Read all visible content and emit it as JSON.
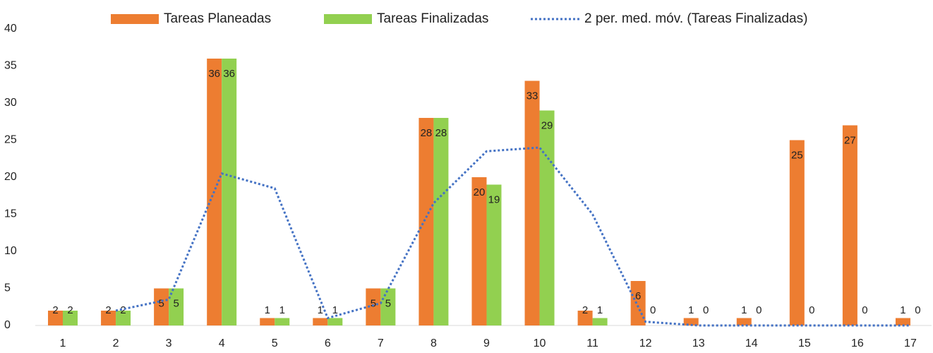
{
  "chart_data": {
    "type": "bar",
    "categories": [
      "1",
      "2",
      "3",
      "4",
      "5",
      "6",
      "7",
      "8",
      "9",
      "10",
      "11",
      "12",
      "13",
      "14",
      "15",
      "16",
      "17"
    ],
    "series": [
      {
        "name": "Tareas Planeadas",
        "type": "bar",
        "color": "#ed7d31",
        "values": [
          2,
          2,
          5,
          36,
          1,
          1,
          5,
          28,
          20,
          33,
          2,
          6,
          1,
          1,
          25,
          27,
          1
        ]
      },
      {
        "name": "Tareas Finalizadas",
        "type": "bar",
        "color": "#92d050",
        "values": [
          2,
          2,
          5,
          36,
          1,
          1,
          5,
          28,
          19,
          29,
          1,
          0,
          0,
          0,
          0,
          0,
          0
        ]
      },
      {
        "name": "2 per. med. móv. (Tareas Finalizadas)",
        "type": "line",
        "dash": "dotted",
        "color": "#4472c4",
        "values": [
          null,
          2,
          3.5,
          20.5,
          18.5,
          1,
          3,
          16.5,
          23.5,
          24,
          15,
          0.5,
          0,
          0,
          0,
          0,
          0
        ]
      }
    ],
    "ylim": [
      0,
      40
    ],
    "yticks": [
      0,
      5,
      10,
      15,
      20,
      25,
      30,
      35,
      40
    ],
    "grid": false,
    "legend": "top"
  }
}
